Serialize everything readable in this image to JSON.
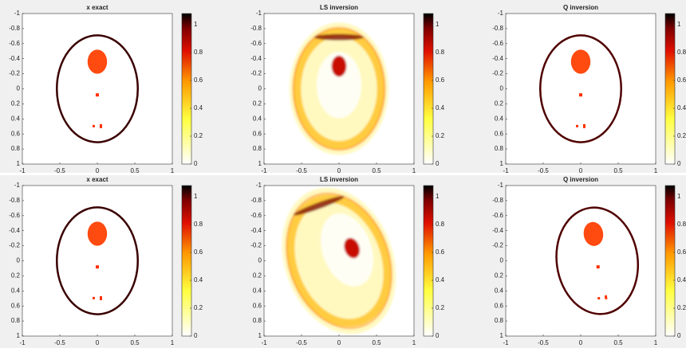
{
  "chart_data": [
    {
      "type": "image",
      "title": "x exact",
      "xlim": [
        -1,
        1
      ],
      "ylim": [
        -1,
        1
      ],
      "y_reversed": true,
      "xticks": [
        -1,
        -0.5,
        0,
        0.5,
        1
      ],
      "yticks": [
        -1,
        -0.8,
        -0.6,
        -0.4,
        -0.2,
        0,
        0.2,
        0.4,
        0.6,
        0.8,
        1
      ],
      "clim": [
        0,
        1.08
      ],
      "cticks": [
        0,
        0.2,
        0.4,
        0.6,
        0.8,
        1
      ]
    },
    {
      "type": "image",
      "title": "LS inversion",
      "xlim": [
        -1,
        1
      ],
      "ylim": [
        -1,
        1
      ],
      "y_reversed": true,
      "xticks": [
        -1,
        -0.5,
        0,
        0.5,
        1
      ],
      "yticks": [
        -1,
        -0.8,
        -0.6,
        -0.4,
        -0.2,
        0,
        0.2,
        0.4,
        0.6,
        0.8,
        1
      ],
      "clim": [
        0,
        1.08
      ],
      "cticks": [
        0,
        0.2,
        0.4,
        0.6,
        0.8,
        1
      ]
    },
    {
      "type": "image",
      "title": "Q inversion",
      "xlim": [
        -1,
        1
      ],
      "ylim": [
        -1,
        1
      ],
      "y_reversed": true,
      "xticks": [
        -1,
        -0.5,
        0,
        0.5,
        1
      ],
      "yticks": [
        -1,
        -0.8,
        -0.6,
        -0.4,
        -0.2,
        0,
        0.2,
        0.4,
        0.6,
        0.8,
        1
      ],
      "clim": [
        0,
        1.08
      ],
      "cticks": [
        0,
        0.2,
        0.4,
        0.6,
        0.8,
        1
      ]
    },
    {
      "type": "image",
      "title": "x exact",
      "xlim": [
        -1,
        1
      ],
      "ylim": [
        -1,
        1
      ],
      "y_reversed": true,
      "xticks": [
        -1,
        -0.5,
        0,
        0.5,
        1
      ],
      "yticks": [
        -1,
        -0.8,
        -0.6,
        -0.4,
        -0.2,
        0,
        0.2,
        0.4,
        0.6,
        0.8,
        1
      ],
      "clim": [
        0,
        1.08
      ],
      "cticks": [
        0,
        0.2,
        0.4,
        0.6,
        0.8,
        1
      ]
    },
    {
      "type": "image",
      "title": "LS inversion",
      "xlim": [
        -1,
        1
      ],
      "ylim": [
        -1,
        1
      ],
      "y_reversed": true,
      "xticks": [
        -1,
        -0.5,
        0,
        0.5,
        1
      ],
      "yticks": [
        -1,
        -0.8,
        -0.6,
        -0.4,
        -0.2,
        0,
        0.2,
        0.4,
        0.6,
        0.8,
        1
      ],
      "clim": [
        0,
        1.08
      ],
      "cticks": [
        0,
        0.2,
        0.4,
        0.6,
        0.8,
        1
      ]
    },
    {
      "type": "image",
      "title": "Q inversion",
      "xlim": [
        -1,
        1
      ],
      "ylim": [
        -1,
        1
      ],
      "y_reversed": true,
      "xticks": [
        -1,
        -0.5,
        0,
        0.5,
        1
      ],
      "yticks": [
        -1,
        -0.8,
        -0.6,
        -0.4,
        -0.2,
        0,
        0.2,
        0.4,
        0.6,
        0.8,
        1
      ],
      "clim": [
        0,
        1.08
      ],
      "cticks": [
        0,
        0.2,
        0.4,
        0.6,
        0.8,
        1
      ]
    }
  ]
}
